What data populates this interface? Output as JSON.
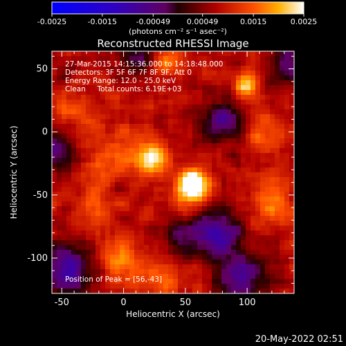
{
  "chart_data": {
    "type": "heatmap",
    "title": "Reconstructed RHESSI Image",
    "xlabel": "Heliocentric X (arcsec)",
    "ylabel": "Heliocentric Y (arcsec)",
    "xlim": [
      -58,
      138
    ],
    "ylim": [
      -128,
      64
    ],
    "xticks": [
      -50,
      0,
      50,
      100
    ],
    "yticks": [
      -100,
      -50,
      0,
      50
    ],
    "colorbar": {
      "range": [
        -0.0025,
        0.0025
      ],
      "ticks": [
        "-0.0025",
        "-0.0015",
        "-0.00049",
        "0.00049",
        "0.0015",
        "0.0025"
      ],
      "unit": "(photons cm⁻² s⁻¹ asec⁻²)",
      "colormap": "blue-purple-red-yellow-white"
    },
    "info_lines": [
      "27-Mar-2015 14:15:36.000 to 14:18:48.000",
      "Detectors: 3F 5F 6F 7F 8F 9F, Att 0",
      "Energy Range: 12.0 - 25.0 keV",
      "Clean     Total counts: 6.19E+03"
    ],
    "peak_label": "Position of Peak = [56,-43]",
    "peak": [
      56,
      -43
    ],
    "sources": [
      {
        "x": 56,
        "y": -43,
        "amplitude": 1.0,
        "sigma": 9
      },
      {
        "x": 23,
        "y": -22,
        "amplitude": 0.72,
        "sigma": 9
      },
      {
        "x": 98,
        "y": 37,
        "amplitude": 0.55,
        "sigma": 7
      },
      {
        "x": 35,
        "y": 55,
        "amplitude": 0.35,
        "sigma": 8
      },
      {
        "x": -10,
        "y": -18,
        "amplitude": 0.3,
        "sigma": 14
      },
      {
        "x": -25,
        "y": -60,
        "amplitude": 0.3,
        "sigma": 12
      },
      {
        "x": -5,
        "y": -100,
        "amplitude": 0.32,
        "sigma": 12
      },
      {
        "x": 30,
        "y": -115,
        "amplitude": 0.3,
        "sigma": 12
      },
      {
        "x": 120,
        "y": -55,
        "amplitude": 0.35,
        "sigma": 12
      },
      {
        "x": 115,
        "y": 0,
        "amplitude": 0.28,
        "sigma": 12
      },
      {
        "x": -40,
        "y": 15,
        "amplitude": 0.25,
        "sigma": 12
      }
    ],
    "negative_regions": [
      {
        "x": 75,
        "y": -80,
        "amplitude": 0.45,
        "sigma": 13
      },
      {
        "x": 95,
        "y": -115,
        "amplitude": 0.4,
        "sigma": 14
      },
      {
        "x": -45,
        "y": -110,
        "amplitude": 0.45,
        "sigma": 14
      },
      {
        "x": 80,
        "y": 8,
        "amplitude": 0.35,
        "sigma": 12
      },
      {
        "x": -55,
        "y": -15,
        "amplitude": 0.35,
        "sigma": 10
      },
      {
        "x": 135,
        "y": 55,
        "amplitude": 0.3,
        "sigma": 12
      },
      {
        "x": 45,
        "y": -85,
        "amplitude": 0.25,
        "sigma": 10
      },
      {
        "x": 10,
        "y": 58,
        "amplitude": 0.28,
        "sigma": 10
      }
    ]
  },
  "timestamp": "20-May-2022 02:51"
}
